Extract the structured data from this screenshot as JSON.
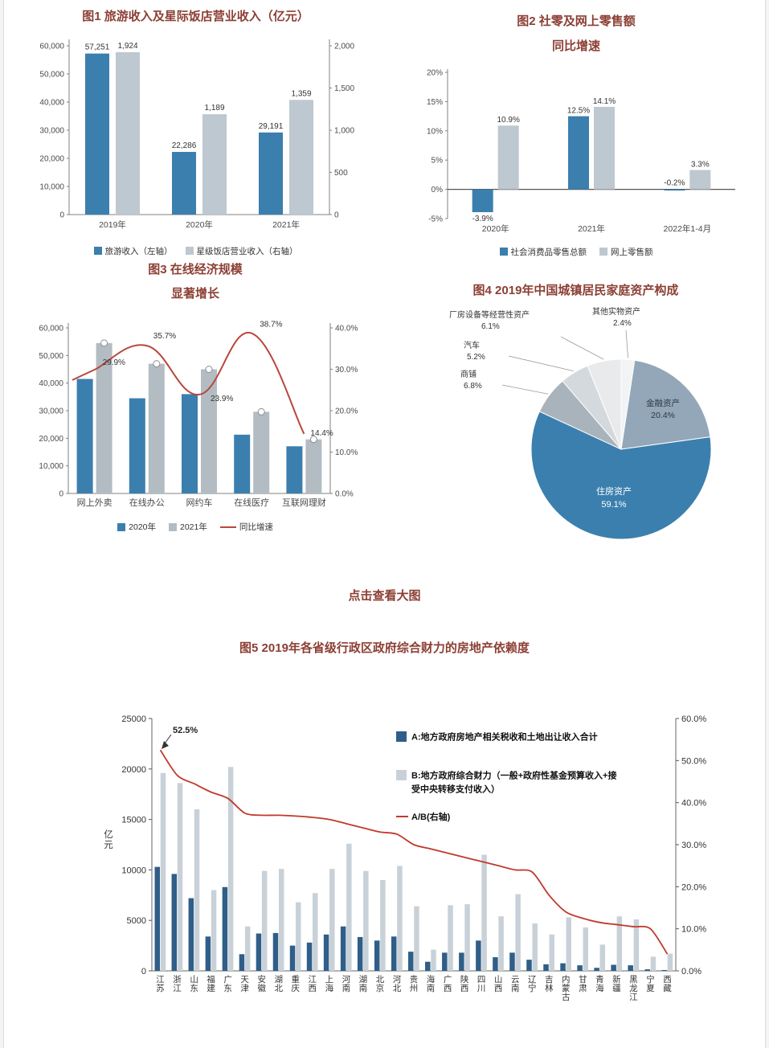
{
  "page": {
    "view_large_text": "点击查看大图"
  },
  "chart_data": [
    {
      "id": "fig1",
      "type": "bar",
      "title": "图1 旅游收入及星际饭店营业收入（亿元）",
      "categories": [
        "2019年",
        "2020年",
        "2021年"
      ],
      "series": [
        {
          "name": "旅游收入（左轴）",
          "axis": "left",
          "color": "#3b7fae",
          "values": [
            57251,
            22286,
            29191
          ]
        },
        {
          "name": "星级饭店营业收入（右轴）",
          "axis": "right",
          "color": "#bdc8d1",
          "values": [
            1924,
            1189,
            1359
          ]
        }
      ],
      "left_axis": {
        "min": 0,
        "max": 60000,
        "step": 10000
      },
      "right_axis": {
        "min": 0,
        "max": 2000,
        "step": 500
      },
      "grid": false,
      "legend_position": "bottom"
    },
    {
      "id": "fig2",
      "type": "bar",
      "title_lines": [
        "图2 社零及网上零售额",
        "同比增速"
      ],
      "categories": [
        "2020年",
        "2021年",
        "2022年1-4月"
      ],
      "series": [
        {
          "name": "社会消费品零售总额",
          "color": "#3b7fae",
          "values": [
            -3.9,
            12.5,
            -0.2
          ]
        },
        {
          "name": "网上零售额",
          "color": "#bdc8d1",
          "values": [
            10.9,
            14.1,
            3.3
          ]
        }
      ],
      "axis": {
        "min": -5,
        "max": 20,
        "step": 5,
        "unit": "%"
      },
      "grid": false,
      "legend_position": "bottom"
    },
    {
      "id": "fig3",
      "type": "bar-line",
      "title_lines": [
        "图3 在线经济规模",
        "显著增长"
      ],
      "categories": [
        "网上外卖",
        "在线办公",
        "网约车",
        "在线医疗",
        "互联网理财"
      ],
      "series": [
        {
          "name": "2020年",
          "color": "#3b7fae",
          "values": [
            41500,
            34500,
            36000,
            21300,
            17100
          ]
        },
        {
          "name": "2021年",
          "color": "#b3bcc3",
          "values": [
            54500,
            47000,
            45000,
            29600,
            19600
          ]
        }
      ],
      "line": {
        "name": "同比增速",
        "color": "#b8473a",
        "values": [
          29.9,
          35.7,
          23.9,
          38.7,
          14.4
        ]
      },
      "left_axis": {
        "min": 0,
        "max": 60000,
        "step": 10000
      },
      "right_axis": {
        "min": 0,
        "max": 40,
        "step": 10
      },
      "legend_position": "bottom"
    },
    {
      "id": "fig4",
      "type": "pie",
      "title": "图4 2019年中国城镇居民家庭资产构成",
      "slices": [
        {
          "label": "其他实物资产",
          "value": 2.4,
          "color": "#f2f3f4"
        },
        {
          "label": "金融资产",
          "value": 20.4,
          "color": "#93a7b8"
        },
        {
          "label": "住房资产",
          "value": 59.1,
          "color": "#3b7fae"
        },
        {
          "label": "商铺",
          "value": 6.8,
          "color": "#a9b3bb"
        },
        {
          "label": "汽车",
          "value": 5.2,
          "color": "#d4d9dd"
        },
        {
          "label": "厂房设备等经营性资产",
          "value": 6.1,
          "color": "#e8eaec"
        }
      ]
    },
    {
      "id": "fig5",
      "type": "bar-line",
      "title": "图5 2019年各省级行政区政府综合财力的房地产依赖度",
      "axis_unit": "亿元",
      "annotation": "52.5%",
      "categories": [
        "江苏",
        "浙江",
        "山东",
        "福建",
        "广东",
        "天津",
        "安徽",
        "湖北",
        "重庆",
        "江西",
        "上海",
        "河南",
        "湖南",
        "北京",
        "河北",
        "贵州",
        "海南",
        "广西",
        "陕西",
        "四川",
        "山西",
        "云南",
        "辽宁",
        "吉林",
        "内蒙古",
        "甘肃",
        "青海",
        "新疆",
        "黑龙江",
        "宁夏",
        "西藏"
      ],
      "series": [
        {
          "name": "A:地方政府房地产相关税收和土地出让收入合计",
          "color": "#2f5e88",
          "values": [
            10300,
            9600,
            7200,
            3400,
            8300,
            1650,
            3700,
            3750,
            2500,
            2800,
            3600,
            4400,
            3350,
            3000,
            3400,
            1900,
            900,
            1800,
            1800,
            3000,
            1350,
            1800,
            1100,
            650,
            750,
            550,
            300,
            600,
            550,
            150,
            80
          ]
        },
        {
          "name": "B:地方政府综合财力（一般+政府性基金预算收入+接受中央转移支付收入）",
          "color": "#c9d1d8",
          "values": [
            19600,
            18600,
            16000,
            8000,
            20200,
            4400,
            9900,
            10100,
            6800,
            7700,
            10100,
            12600,
            9900,
            9000,
            10400,
            6400,
            2100,
            6500,
            6600,
            11500,
            5400,
            7600,
            4700,
            3600,
            5300,
            4300,
            2600,
            5400,
            5100,
            1400,
            1700
          ]
        }
      ],
      "line": {
        "name": "A/B(右轴)",
        "color": "#c0392b",
        "values": [
          52.5,
          46.5,
          44.5,
          42.5,
          41.0,
          37.5,
          37.0,
          37.0,
          36.8,
          36.5,
          36.0,
          35.0,
          34.0,
          33.0,
          32.5,
          30.0,
          29.0,
          28.0,
          27.0,
          26.0,
          25.0,
          24.0,
          23.5,
          18.0,
          14.0,
          12.5,
          11.5,
          11.0,
          10.5,
          10.0,
          4.0
        ]
      },
      "left_axis": {
        "min": 0,
        "max": 25000,
        "step": 5000
      },
      "right_axis": {
        "min": 0,
        "max": 60,
        "step": 10
      },
      "legend_position": "inside-top-right"
    }
  ]
}
